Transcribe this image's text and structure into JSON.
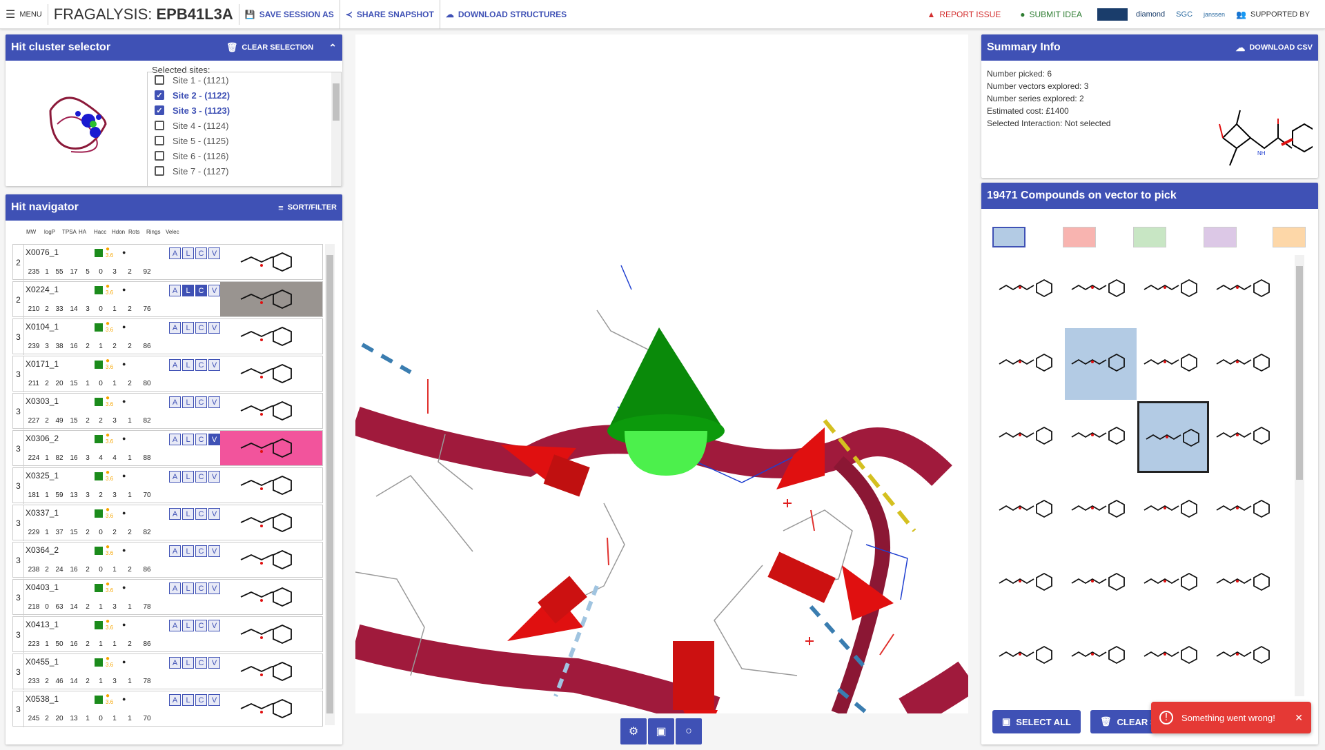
{
  "topbar": {
    "menu_label": "MENU",
    "brand_prefix": "FRAGALYSIS:",
    "brand_target": "EPB41L3A",
    "save_session": "SAVE SESSION AS",
    "share_snapshot": "SHARE SNAPSHOT",
    "download_structures": "DOWNLOAD STRUCTURES",
    "report_issue": "REPORT ISSUE",
    "submit_idea": "SUBMIT IDEA",
    "supported_by": "SUPPORTED BY",
    "logos": [
      "diamond",
      "SGC",
      "janssen"
    ]
  },
  "cluster_selector": {
    "title": "Hit cluster selector",
    "clear_selection": "CLEAR SELECTION",
    "selected_sites_label": "Selected sites:",
    "sites": [
      {
        "label": "Site 1 - (1121)",
        "checked": false
      },
      {
        "label": "Site 2 - (1122)",
        "checked": true
      },
      {
        "label": "Site 3 - (1123)",
        "checked": true
      },
      {
        "label": "Site 4 - (1124)",
        "checked": false
      },
      {
        "label": "Site 5 - (1125)",
        "checked": false
      },
      {
        "label": "Site 6 - (1126)",
        "checked": false
      },
      {
        "label": "Site 7 - (1127)",
        "checked": false
      }
    ]
  },
  "navigator": {
    "title": "Hit navigator",
    "sort_filter": "SORT/FILTER",
    "columns": [
      "MW",
      "logP",
      "TPSA",
      "HA",
      "Hacc",
      "Hdon",
      "Rots",
      "Rings",
      "Velec"
    ],
    "dot_value": "3.6",
    "rows": [
      {
        "site": "2",
        "code": "X0076_1",
        "vals": [
          "235",
          "1",
          "55",
          "17",
          "5",
          "0",
          "3",
          "2",
          "92"
        ],
        "bg": "",
        "active": []
      },
      {
        "site": "2",
        "code": "X0224_1",
        "vals": [
          "210",
          "2",
          "33",
          "14",
          "3",
          "0",
          "1",
          "2",
          "76"
        ],
        "bg": "#999490",
        "active": [
          "A",
          "L",
          "C",
          "V"
        ]
      },
      {
        "site": "3",
        "code": "X0104_1",
        "vals": [
          "239",
          "3",
          "38",
          "16",
          "2",
          "1",
          "2",
          "2",
          "86"
        ],
        "bg": "",
        "active": []
      },
      {
        "site": "3",
        "code": "X0171_1",
        "vals": [
          "211",
          "2",
          "20",
          "15",
          "1",
          "0",
          "1",
          "2",
          "80"
        ],
        "bg": "",
        "active": []
      },
      {
        "site": "3",
        "code": "X0303_1",
        "vals": [
          "227",
          "2",
          "49",
          "15",
          "2",
          "2",
          "3",
          "1",
          "82"
        ],
        "bg": "",
        "active": []
      },
      {
        "site": "3",
        "code": "X0306_2",
        "vals": [
          "224",
          "1",
          "82",
          "16",
          "3",
          "4",
          "4",
          "1",
          "88"
        ],
        "bg": "#f2549c",
        "active": [
          "A",
          "L",
          "C",
          "V"
        ]
      },
      {
        "site": "3",
        "code": "X0325_1",
        "vals": [
          "181",
          "1",
          "59",
          "13",
          "3",
          "2",
          "3",
          "1",
          "70"
        ],
        "bg": "",
        "active": []
      },
      {
        "site": "3",
        "code": "X0337_1",
        "vals": [
          "229",
          "1",
          "37",
          "15",
          "2",
          "0",
          "2",
          "2",
          "82"
        ],
        "bg": "",
        "active": []
      },
      {
        "site": "3",
        "code": "X0364_2",
        "vals": [
          "238",
          "2",
          "24",
          "16",
          "2",
          "0",
          "1",
          "2",
          "86"
        ],
        "bg": "",
        "active": []
      },
      {
        "site": "3",
        "code": "X0403_1",
        "vals": [
          "218",
          "0",
          "63",
          "14",
          "2",
          "1",
          "3",
          "1",
          "78"
        ],
        "bg": "",
        "active": []
      },
      {
        "site": "3",
        "code": "X0413_1",
        "vals": [
          "223",
          "1",
          "50",
          "16",
          "2",
          "1",
          "1",
          "2",
          "86"
        ],
        "bg": "",
        "active": []
      },
      {
        "site": "3",
        "code": "X0455_1",
        "vals": [
          "233",
          "2",
          "46",
          "14",
          "2",
          "1",
          "3",
          "1",
          "78"
        ],
        "bg": "",
        "active": []
      },
      {
        "site": "3",
        "code": "X0538_1",
        "vals": [
          "245",
          "2",
          "20",
          "13",
          "1",
          "0",
          "1",
          "1",
          "70"
        ],
        "bg": "",
        "active": []
      }
    ]
  },
  "summary": {
    "title": "Summary Info",
    "download_csv": "DOWNLOAD CSV",
    "lines": [
      "Number picked: 6",
      "Number vectors explored: 3",
      "Number series explored: 2",
      "Estimated cost: £1400",
      "Selected Interaction: Not selected"
    ]
  },
  "compounds": {
    "title": "19471 Compounds on vector to pick",
    "color_swatches": [
      "#b3cbe4",
      "#f8b4b0",
      "#c8e6c4",
      "#dcc8e6",
      "#fdd7a8"
    ],
    "select_all": "SELECT ALL",
    "clear_selection": "CLEAR S"
  },
  "toast": {
    "message": "Something went wrong!"
  }
}
